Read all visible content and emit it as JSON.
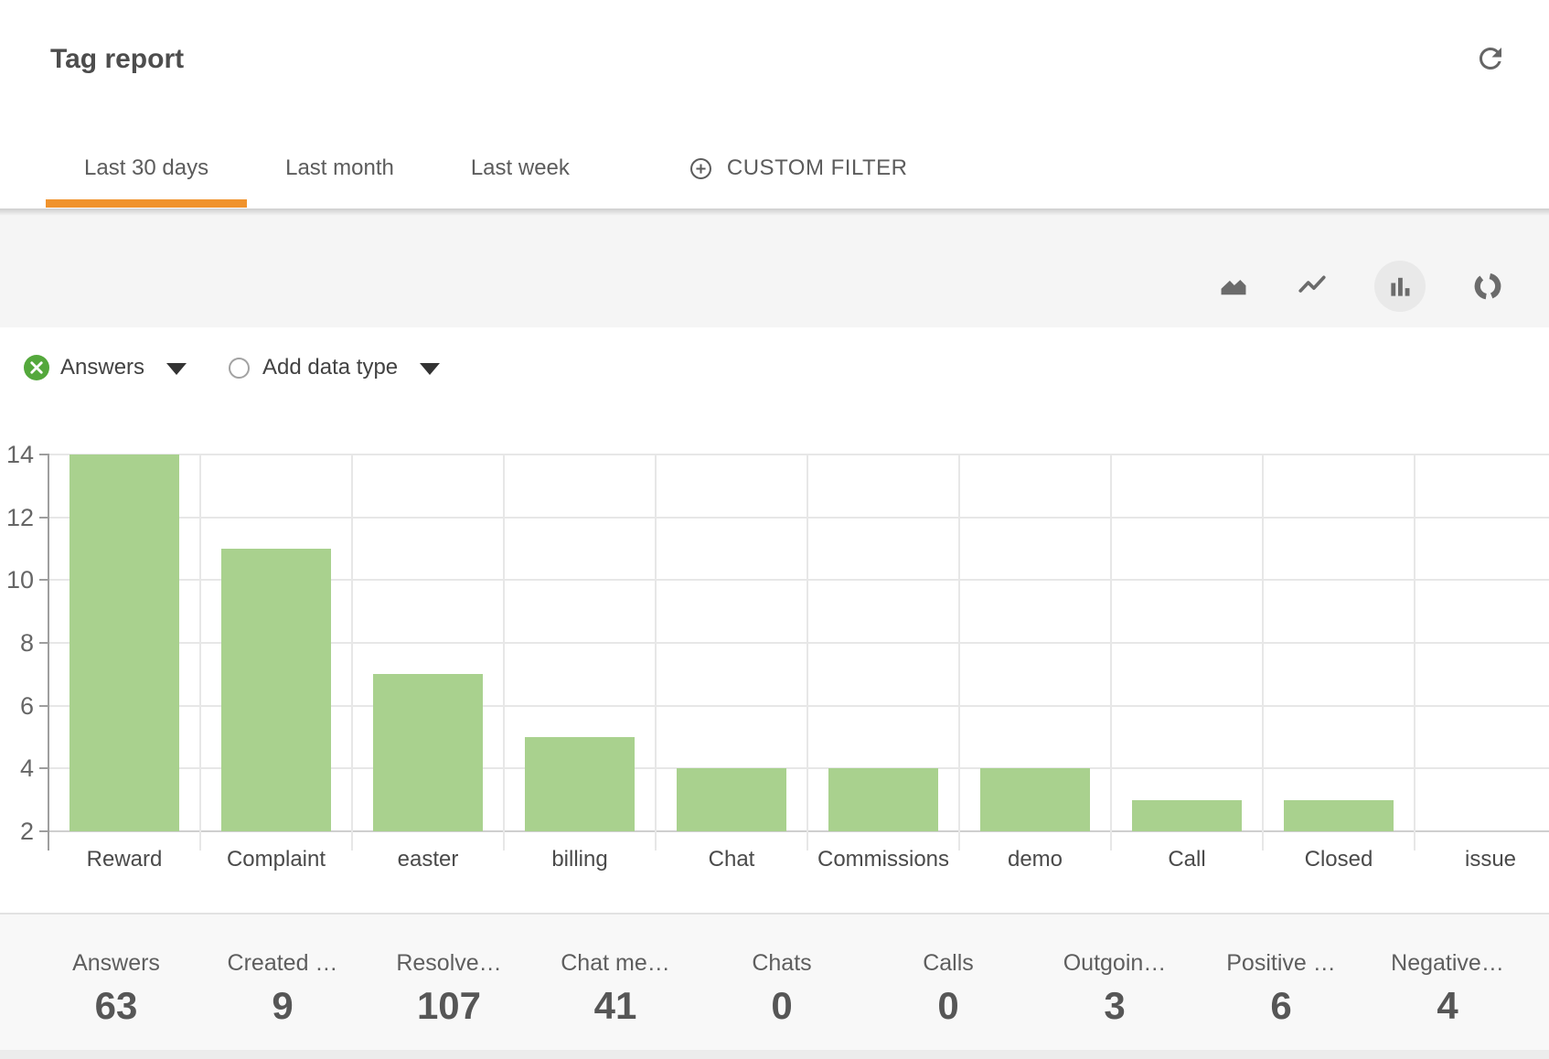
{
  "header": {
    "title": "Tag report"
  },
  "tabs": {
    "items": [
      {
        "label": "Last 30 days",
        "active": true
      },
      {
        "label": "Last month",
        "active": false
      },
      {
        "label": "Last week",
        "active": false
      }
    ],
    "custom_filter_label": "CUSTOM FILTER"
  },
  "toolbar": {
    "chart_types": [
      "area",
      "line",
      "bar",
      "donut"
    ],
    "selected_chart_type": "bar"
  },
  "filters": {
    "series_label": "Answers",
    "add_data_type_label": "Add data type"
  },
  "chart_data": {
    "type": "bar",
    "series_name": "Answers",
    "categories": [
      "Reward",
      "Complaint",
      "easter",
      "billing",
      "Chat",
      "Commissions",
      "demo",
      "Call",
      "Closed",
      "issue"
    ],
    "values": [
      14,
      11,
      7,
      5,
      4,
      4,
      4,
      3,
      3,
      2
    ],
    "ylim": [
      2,
      14
    ],
    "yticks": [
      2,
      4,
      6,
      8,
      10,
      12,
      14
    ],
    "grid": true,
    "legend": "none",
    "bar_color": "#a9d18e"
  },
  "stats": {
    "items": [
      {
        "label": "Answers",
        "value": "63"
      },
      {
        "label": "Created …",
        "value": "9"
      },
      {
        "label": "Resolve…",
        "value": "107"
      },
      {
        "label": "Chat me…",
        "value": "41"
      },
      {
        "label": "Chats",
        "value": "0"
      },
      {
        "label": "Calls",
        "value": "0"
      },
      {
        "label": "Outgoin…",
        "value": "3"
      },
      {
        "label": "Positive …",
        "value": "6"
      },
      {
        "label": "Negative…",
        "value": "4"
      }
    ]
  },
  "colors": {
    "accent_orange": "#f0932d",
    "bar_green": "#a9d18e",
    "remove_green": "#54a83c",
    "band_gray": "#f5f5f5"
  }
}
